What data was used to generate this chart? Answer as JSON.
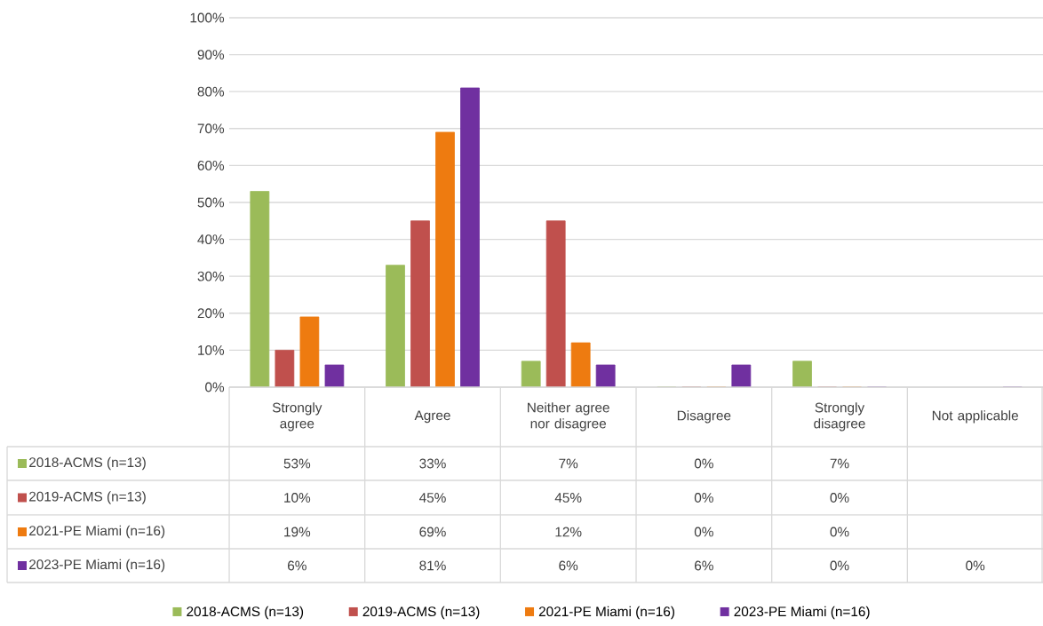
{
  "chart_data": {
    "type": "bar",
    "categories": [
      "Strongly agree",
      "Agree",
      "Neither agree nor disagree",
      "Disagree",
      "Strongly disagree",
      "Not applicable"
    ],
    "series": [
      {
        "name": "2018-ACMS (n=13)",
        "color": "#9bbb59",
        "values": [
          53,
          33,
          7,
          0,
          7,
          null
        ],
        "value_labels": [
          "53%",
          "33%",
          "7%",
          "0%",
          "7%",
          null
        ]
      },
      {
        "name": "2019-ACMS (n=13)",
        "color": "#c0504d",
        "values": [
          10,
          45,
          45,
          0,
          0,
          null
        ],
        "value_labels": [
          "10%",
          "45%",
          "45%",
          "0%",
          "0%",
          null
        ]
      },
      {
        "name": "2021-PE Miami (n=16)",
        "color": "#ee7b10",
        "values": [
          19,
          69,
          12,
          0,
          0,
          null
        ],
        "value_labels": [
          "19%",
          "69%",
          "12%",
          "0%",
          "0%",
          null
        ]
      },
      {
        "name": "2023-PE Miami (n=16)",
        "color": "#7030a0",
        "values": [
          6,
          81,
          6,
          6,
          0,
          0
        ],
        "value_labels": [
          "6%",
          "81%",
          "6%",
          "6%",
          "0%",
          "0%"
        ]
      }
    ],
    "ylim": [
      0,
      100
    ],
    "yticks": [
      {
        "value": 0,
        "label": "0%"
      },
      {
        "value": 10,
        "label": "10%"
      },
      {
        "value": 20,
        "label": "20%"
      },
      {
        "value": 30,
        "label": "30%"
      },
      {
        "value": 40,
        "label": "40%"
      },
      {
        "value": 50,
        "label": "50%"
      },
      {
        "value": 60,
        "label": "60%"
      },
      {
        "value": 70,
        "label": "70%"
      },
      {
        "value": 80,
        "label": "80%"
      },
      {
        "value": 90,
        "label": "90%"
      },
      {
        "value": 100,
        "label": "100%"
      }
    ],
    "grid": "y",
    "legend": "bottom"
  }
}
